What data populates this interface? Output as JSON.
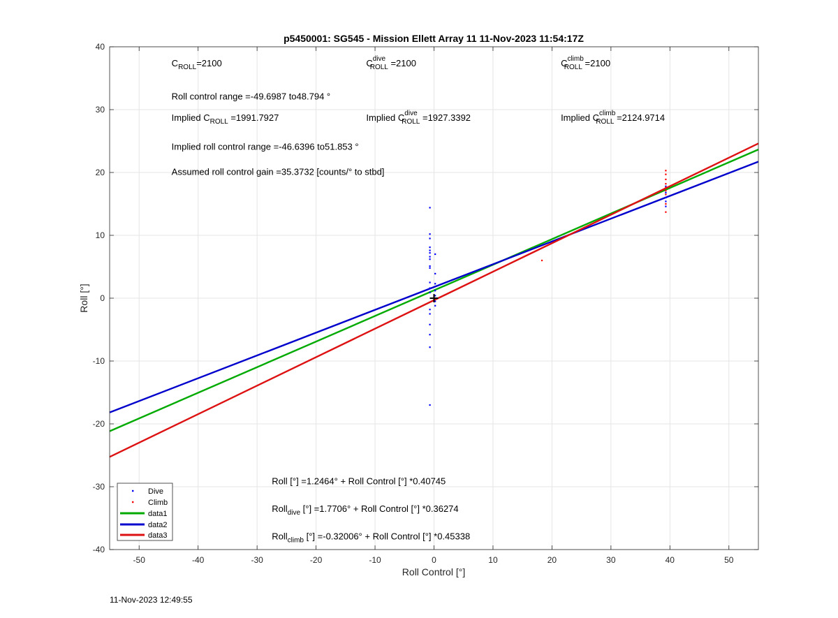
{
  "footer": {
    "timestamp": "11-Nov-2023 12:49:55"
  },
  "chart_data": {
    "type": "scatter",
    "title": "p5450001: SG545 - Mission Ellett Array 11 11-Nov-2023 11:54:17Z",
    "xlabel": "Roll Control [°]",
    "ylabel": "Roll [°]",
    "xlim": [
      -55,
      55
    ],
    "ylim": [
      -40,
      40
    ],
    "xticks": [
      -50,
      -40,
      -30,
      -20,
      -10,
      0,
      10,
      20,
      30,
      40,
      50
    ],
    "yticks": [
      -40,
      -30,
      -20,
      -10,
      0,
      10,
      20,
      30,
      40
    ],
    "grid": true,
    "legend_position": "bottom-left",
    "series": [
      {
        "name": "Dive",
        "kind": "points",
        "color": "#0000ff",
        "x": [
          -0.7,
          -0.7,
          -0.7,
          -0.7,
          -0.7,
          -0.7,
          -0.7,
          -0.7,
          -0.7,
          -0.7,
          -0.7,
          -0.7,
          -0.7,
          -0.7,
          -0.7,
          -0.7,
          -0.7,
          -0.7,
          -0.7,
          0.2,
          0.2,
          0.2,
          0.2,
          0.2,
          0.2,
          0.2,
          39.3,
          39.3,
          39.3,
          39.3,
          39.3
        ],
        "y": [
          14.4,
          10.2,
          9.5,
          8.1,
          7.6,
          7.2,
          6.6,
          6.2,
          5.1,
          4.8,
          2.5,
          1.6,
          0.9,
          -1.8,
          -2.5,
          -4.2,
          -5.8,
          -7.8,
          -17.0,
          7.0,
          3.9,
          2.3,
          1.2,
          0.4,
          -0.5,
          -1.2,
          16.0,
          15.4,
          14.6,
          17.8,
          16.8
        ]
      },
      {
        "name": "Climb",
        "kind": "points",
        "color": "#ff0000",
        "x": [
          18.3,
          39.3,
          39.3,
          39.3,
          39.3,
          39.3,
          39.3,
          39.3,
          39.3,
          39.3,
          0.0
        ],
        "y": [
          6.0,
          20.3,
          19.7,
          18.9,
          18.2,
          17.6,
          17.1,
          16.5,
          15.0,
          13.7,
          0.3
        ]
      },
      {
        "name": "data1",
        "kind": "line",
        "color": "#00aa00",
        "intercept": 1.2464,
        "slope": 0.40745
      },
      {
        "name": "data2",
        "kind": "line",
        "color": "#0000cc",
        "intercept": 1.7706,
        "slope": 0.36274
      },
      {
        "name": "data3",
        "kind": "line",
        "color": "#dd1111",
        "intercept": -0.32006,
        "slope": 0.45338
      }
    ],
    "marker": {
      "x": 0,
      "y": 0,
      "symbol": "+",
      "color": "#000000"
    },
    "annotations": [
      {
        "id": "c_roll",
        "x": -44.5,
        "y": 36.9,
        "parts": [
          [
            "C",
            ""
          ],
          [
            "ROLL",
            "sub"
          ],
          [
            "=2100",
            ""
          ]
        ]
      },
      {
        "id": "c_dive",
        "x": -11.5,
        "y": 36.9,
        "parts": [
          [
            "C",
            ""
          ],
          [
            "dive",
            "sup"
          ],
          [
            "ROLL",
            "sub"
          ],
          [
            " =2100",
            ""
          ]
        ]
      },
      {
        "id": "c_climb",
        "x": 21.5,
        "y": 36.9,
        "parts": [
          [
            "C",
            ""
          ],
          [
            "climb",
            "sup"
          ],
          [
            "ROLL",
            "sub"
          ],
          [
            " =2100",
            ""
          ]
        ]
      },
      {
        "id": "range",
        "x": -44.5,
        "y": 31.6,
        "parts": [
          [
            "Roll control range =-49.6987 to48.794 °",
            ""
          ]
        ]
      },
      {
        "id": "imp_roll",
        "x": -44.5,
        "y": 28.2,
        "parts": [
          [
            "Implied C",
            ""
          ],
          [
            "ROLL",
            "sub"
          ],
          [
            " =1991.7927",
            ""
          ]
        ]
      },
      {
        "id": "imp_dive",
        "x": -11.5,
        "y": 28.2,
        "parts": [
          [
            "Implied C",
            ""
          ],
          [
            "dive",
            "sup"
          ],
          [
            "ROLL",
            "sub"
          ],
          [
            " =1927.3392",
            ""
          ]
        ]
      },
      {
        "id": "imp_climb",
        "x": 21.5,
        "y": 28.2,
        "parts": [
          [
            "Implied C",
            ""
          ],
          [
            "climb",
            "sup"
          ],
          [
            "ROLL",
            "sub"
          ],
          [
            " =2124.9714",
            ""
          ]
        ]
      },
      {
        "id": "imp_range",
        "x": -44.5,
        "y": 23.6,
        "parts": [
          [
            "Implied roll control range =-46.6396 to51.853 °",
            ""
          ]
        ]
      },
      {
        "id": "gain",
        "x": -44.5,
        "y": 19.6,
        "parts": [
          [
            "Assumed roll control gain =35.3732 [counts/° to stbd]",
            ""
          ]
        ]
      },
      {
        "id": "eq_all",
        "x": -27.5,
        "y": -29.6,
        "parts": [
          [
            "Roll [°] =1.2464° + Roll Control [°] *0.40745",
            ""
          ]
        ]
      },
      {
        "id": "eq_dive",
        "x": -27.5,
        "y": -34.0,
        "parts": [
          [
            "Roll",
            ""
          ],
          [
            "dive",
            "sub"
          ],
          [
            " [°] =1.7706° + Roll Control [°] *0.36274",
            ""
          ]
        ]
      },
      {
        "id": "eq_climb",
        "x": -27.5,
        "y": -38.4,
        "parts": [
          [
            "Roll",
            ""
          ],
          [
            "climb",
            "sub"
          ],
          [
            " [°] =-0.32006° + Roll Control [°] *0.45338",
            ""
          ]
        ]
      }
    ]
  }
}
